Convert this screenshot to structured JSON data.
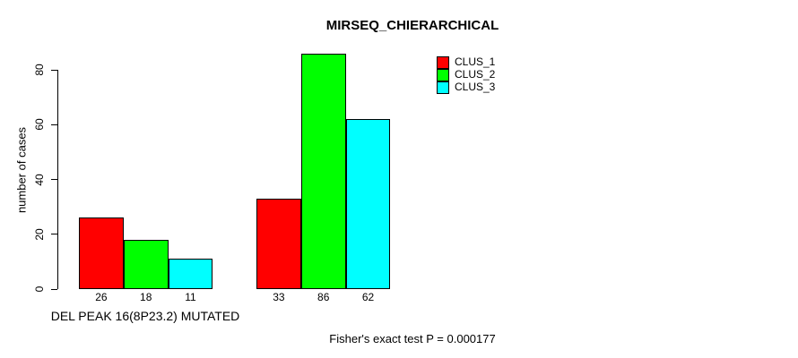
{
  "title": "MIRSEQ_CHIERARCHICAL",
  "footer_note": "Fisher's exact test P = 0.000177",
  "chart_data": {
    "type": "bar",
    "title": "MIRSEQ_CHIERARCHICAL",
    "xlabel": "DEL PEAK 16(8P23.2) MUTATED",
    "ylabel": "number of cases",
    "ylim": [
      0,
      86
    ],
    "yticks": [
      0,
      20,
      40,
      60,
      80
    ],
    "grid": false,
    "legend_position": "top-right",
    "categories": [
      "DEL PEAK 16(8P23.2) MUTATED",
      ""
    ],
    "series": [
      {
        "name": "CLUS_1",
        "color": "#FF0000",
        "values": [
          26,
          33
        ]
      },
      {
        "name": "CLUS_2",
        "color": "#00FF00",
        "values": [
          18,
          86
        ]
      },
      {
        "name": "CLUS_3",
        "color": "#00FFFF",
        "values": [
          11,
          62
        ]
      }
    ],
    "bar_labels": [
      [
        26,
        18,
        11
      ],
      [
        33,
        86,
        62
      ]
    ],
    "annotation": "Fisher's exact test P = 0.000177"
  }
}
